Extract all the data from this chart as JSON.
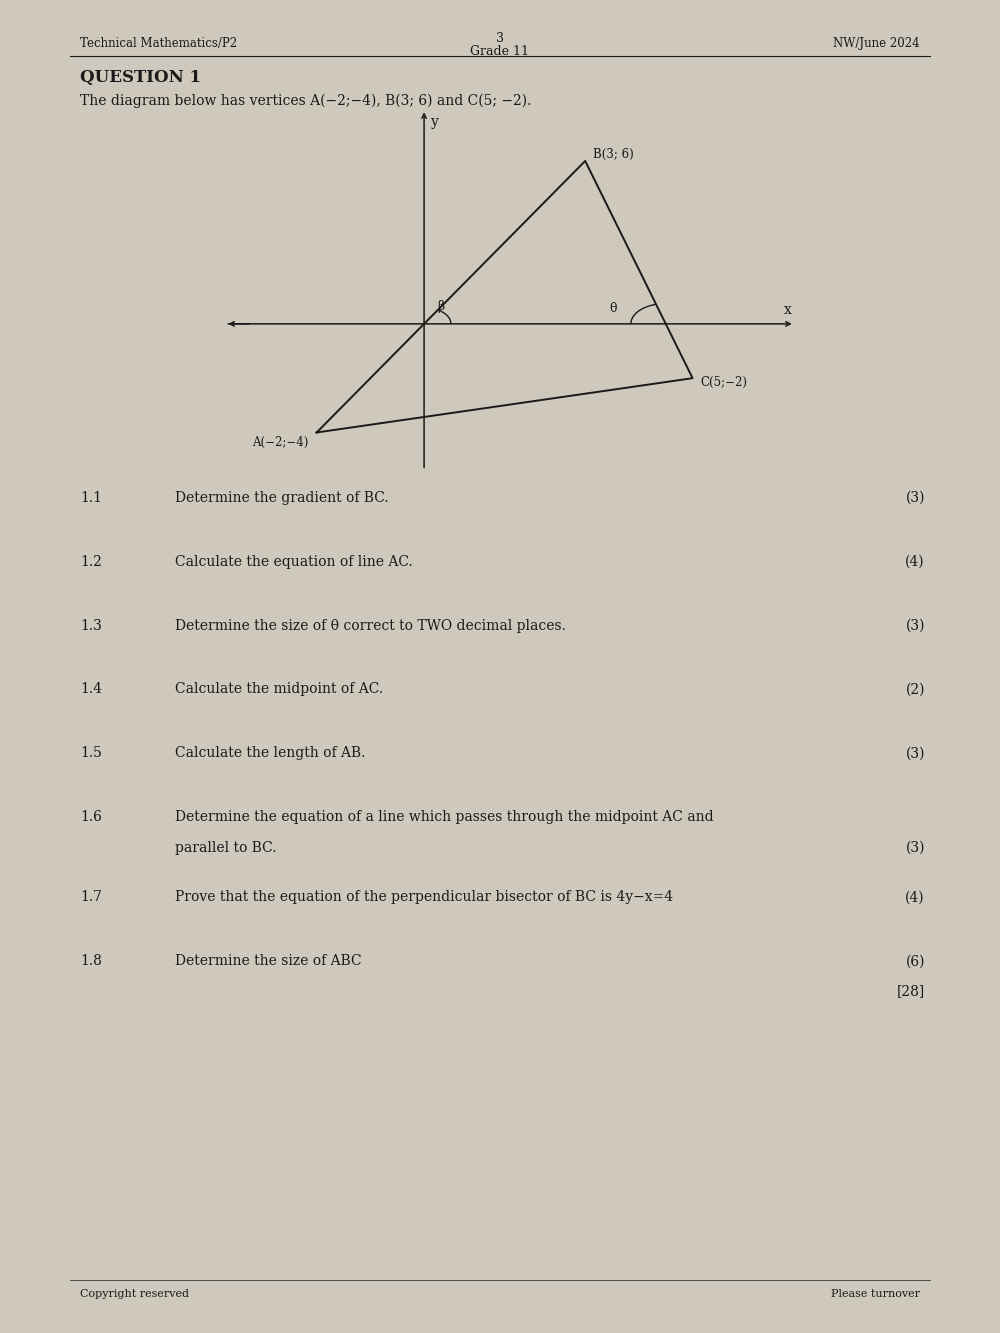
{
  "page_title_left": "Technical Mathematics/P2",
  "page_number": "3",
  "page_grade": "Grade 11",
  "page_title_right": "NW/June 2024",
  "question_heading": "QUESTION 1",
  "intro_text": "The diagram below has vertices A(−2;−4), B(3; 6) and C(5; −2).",
  "vertices": {
    "A": [
      -2,
      -4
    ],
    "B": [
      3,
      6
    ],
    "C": [
      5,
      -2
    ]
  },
  "vertex_labels": {
    "A": "A(−2;−4)",
    "B": "B(3; 6)",
    "C": "C(5;−2)"
  },
  "angle_labels": {
    "beta": "β",
    "theta": "θ"
  },
  "axis_labels": {
    "x": "x",
    "y": "y"
  },
  "questions": [
    {
      "num": "1.1",
      "text": "Determine the gradient of BC.",
      "marks": "(3)",
      "extra_marks": ""
    },
    {
      "num": "1.2",
      "text": "Calculate the equation of line AC.",
      "marks": "(4)",
      "extra_marks": ""
    },
    {
      "num": "1.3",
      "text": "Determine the size of θ correct to TWO decimal places.",
      "marks": "(3)",
      "extra_marks": ""
    },
    {
      "num": "1.4",
      "text": "Calculate the midpoint of AC.",
      "marks": "(2)",
      "extra_marks": ""
    },
    {
      "num": "1.5",
      "text": "Calculate the length of AB.",
      "marks": "(3)",
      "extra_marks": ""
    },
    {
      "num": "1.6",
      "text": "Determine the equation of a line which passes through the midpoint AC and",
      "marks": "",
      "extra_marks": "",
      "line2": "parallel to BC.",
      "marks2": "(3)"
    },
    {
      "num": "1.7",
      "text": "Prove that the equation of the perpendicular bisector of BC is 4y−x=4",
      "marks": "(4)",
      "extra_marks": ""
    },
    {
      "num": "1.8",
      "text": "Determine the size of ABC",
      "marks": "(6)",
      "extra_marks": "[28]"
    }
  ],
  "footer_left": "Copyright reserved",
  "footer_right": "Please turnover",
  "bg_color": "#cfc8bc",
  "text_color": "#1a1a1a",
  "diagram_xlim": [
    -3.8,
    7.0
  ],
  "diagram_ylim": [
    -5.5,
    8.0
  ]
}
